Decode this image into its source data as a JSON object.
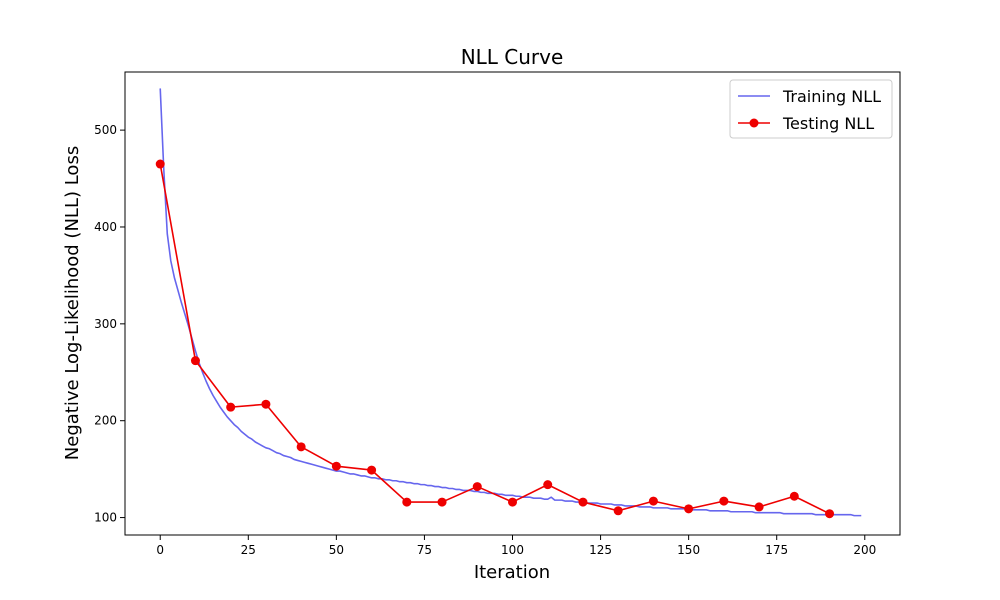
{
  "chart_data": {
    "type": "line",
    "title": "NLL Curve",
    "xlabel": "Iteration",
    "ylabel": "Negative Log-Likelihood (NLL) Loss",
    "xlim": [
      -10,
      210
    ],
    "ylim": [
      82,
      560
    ],
    "xticks": [
      0,
      25,
      50,
      75,
      100,
      125,
      150,
      175,
      200
    ],
    "yticks": [
      100,
      200,
      300,
      400,
      500
    ],
    "grid": false,
    "legend_position": "top-right",
    "series": [
      {
        "name": "Training NLL",
        "color": "#6666ee",
        "marker": "none",
        "x": [
          0,
          1,
          2,
          3,
          4,
          5,
          6,
          7,
          8,
          9,
          10,
          11,
          12,
          13,
          14,
          15,
          16,
          17,
          18,
          19,
          20,
          21,
          22,
          23,
          24,
          25,
          26,
          27,
          28,
          29,
          30,
          31,
          32,
          33,
          34,
          35,
          36,
          37,
          38,
          39,
          40,
          41,
          42,
          43,
          44,
          45,
          46,
          47,
          48,
          49,
          50,
          51,
          52,
          53,
          54,
          55,
          56,
          57,
          58,
          59,
          60,
          61,
          62,
          63,
          64,
          65,
          66,
          67,
          68,
          69,
          70,
          71,
          72,
          73,
          74,
          75,
          76,
          77,
          78,
          79,
          80,
          81,
          82,
          83,
          84,
          85,
          86,
          87,
          88,
          89,
          90,
          91,
          92,
          93,
          94,
          95,
          96,
          97,
          98,
          99,
          100,
          101,
          102,
          103,
          104,
          105,
          106,
          107,
          108,
          109,
          110,
          111,
          112,
          113,
          114,
          115,
          116,
          117,
          118,
          119,
          120,
          121,
          122,
          123,
          124,
          125,
          126,
          127,
          128,
          129,
          130,
          131,
          132,
          133,
          134,
          135,
          136,
          137,
          138,
          139,
          140,
          141,
          142,
          143,
          144,
          145,
          146,
          147,
          148,
          149,
          150,
          151,
          152,
          153,
          154,
          155,
          156,
          157,
          158,
          159,
          160,
          161,
          162,
          163,
          164,
          165,
          166,
          167,
          168,
          169,
          170,
          171,
          172,
          173,
          174,
          175,
          176,
          177,
          178,
          179,
          180,
          181,
          182,
          183,
          184,
          185,
          186,
          187,
          188,
          189,
          190,
          191,
          192,
          193,
          194,
          195,
          196,
          197,
          198,
          199
        ],
        "y": [
          543,
          460,
          393,
          365,
          348,
          335,
          322,
          310,
          298,
          285,
          272,
          260,
          250,
          241,
          233,
          226,
          220,
          214,
          209,
          204,
          200,
          196,
          193,
          189,
          186,
          183,
          181,
          178,
          176,
          174,
          172,
          171,
          169,
          167,
          166,
          164,
          163,
          162,
          160,
          159,
          158,
          157,
          156,
          155,
          154,
          153,
          152,
          151,
          150,
          149,
          148,
          148,
          147,
          146,
          145,
          145,
          144,
          143,
          143,
          142,
          141,
          141,
          140,
          140,
          139,
          139,
          138,
          138,
          137,
          137,
          136,
          136,
          135,
          135,
          134,
          134,
          133,
          133,
          132,
          132,
          131,
          131,
          130,
          130,
          129,
          129,
          128,
          128,
          128,
          127,
          127,
          126,
          126,
          125,
          125,
          125,
          124,
          124,
          123,
          123,
          123,
          122,
          122,
          121,
          121,
          121,
          120,
          120,
          120,
          119,
          119,
          121,
          118,
          118,
          118,
          117,
          117,
          117,
          116,
          116,
          116,
          115,
          115,
          115,
          115,
          114,
          114,
          114,
          114,
          113,
          113,
          113,
          112,
          112,
          112,
          112,
          111,
          111,
          111,
          111,
          110,
          110,
          110,
          110,
          110,
          109,
          109,
          109,
          109,
          109,
          108,
          108,
          108,
          108,
          108,
          108,
          107,
          107,
          107,
          107,
          107,
          107,
          106,
          106,
          106,
          106,
          106,
          106,
          106,
          105,
          105,
          105,
          105,
          105,
          105,
          105,
          105,
          104,
          104,
          104,
          104,
          104,
          104,
          104,
          104,
          104,
          103,
          103,
          103,
          103,
          103,
          103,
          103,
          103,
          103,
          103,
          103,
          102,
          102,
          102
        ]
      },
      {
        "name": "Testing NLL",
        "color": "#ee0000",
        "marker": "circle",
        "x": [
          0,
          10,
          20,
          30,
          40,
          50,
          60,
          70,
          80,
          90,
          100,
          110,
          120,
          130,
          140,
          150,
          160,
          170,
          180,
          190
        ],
        "y": [
          465,
          262,
          214,
          217,
          173,
          153,
          149,
          116,
          116,
          132,
          116,
          134,
          116,
          107,
          117,
          109,
          117,
          111,
          122,
          104
        ]
      }
    ]
  }
}
